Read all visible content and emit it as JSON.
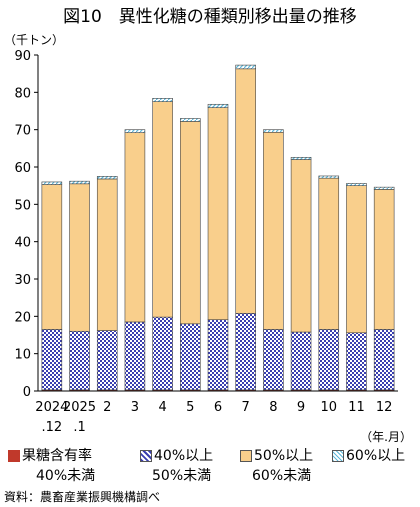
{
  "chart_data": {
    "type": "bar",
    "stacked": true,
    "title": "図10　異性化糖の種類別移出量の推移",
    "ylabel": "（千トン）",
    "xlabel": "（年.月）",
    "ylim": [
      0,
      90
    ],
    "yticks": [
      0,
      10,
      20,
      30,
      40,
      50,
      60,
      70,
      80,
      90
    ],
    "grid": false,
    "categories": [
      "2024\n.12",
      "2025\n.1",
      "2",
      "3",
      "4",
      "5",
      "6",
      "7",
      "8",
      "9",
      "10",
      "11",
      "12"
    ],
    "category_lines": [
      [
        "2024",
        ".12"
      ],
      [
        "2025",
        ".1"
      ],
      [
        "2"
      ],
      [
        "3"
      ],
      [
        "4"
      ],
      [
        "5"
      ],
      [
        "6"
      ],
      [
        "7"
      ],
      [
        "8"
      ],
      [
        "9"
      ],
      [
        "10"
      ],
      [
        "11"
      ],
      [
        "12"
      ]
    ],
    "series": [
      {
        "name": "果糖含有率40%未満",
        "color": "#c0392b",
        "values": [
          0.3,
          0.3,
          0.3,
          0.3,
          0.3,
          0.3,
          0.3,
          0.3,
          0.3,
          0.3,
          0.3,
          0.3,
          0.3
        ]
      },
      {
        "name": "40%以上50%未満",
        "color": "#3a3fb0",
        "values": [
          16.2,
          15.7,
          15.9,
          18.2,
          19.5,
          17.7,
          18.8,
          20.5,
          16.2,
          15.5,
          16.2,
          15.3,
          16.2
        ]
      },
      {
        "name": "50%以上60%未満",
        "color": "#f9cf8c",
        "values": [
          38.8,
          39.5,
          40.6,
          50.7,
          57.7,
          54.2,
          56.8,
          65.5,
          52.8,
          46.2,
          40.5,
          39.4,
          37.5
        ]
      },
      {
        "name": "60%以上",
        "color": "#9fd9ee",
        "values": [
          0.7,
          0.7,
          0.7,
          0.8,
          0.9,
          0.8,
          0.9,
          1.0,
          0.7,
          0.6,
          0.6,
          0.6,
          0.6
        ]
      }
    ]
  },
  "legend": {
    "items": [
      {
        "line1": "果糖含有率",
        "line2": "40%未満",
        "color": "#c0392b"
      },
      {
        "line1": "40%以上",
        "line2": "50%未満",
        "color": "#3a3fb0"
      },
      {
        "line1": "50%以上",
        "line2": "60%未満",
        "color": "#f9cf8c"
      },
      {
        "line1": "60%以上",
        "line2": "",
        "color": "#9fd9ee"
      }
    ]
  },
  "source": "資料：農畜産業振興機構調べ"
}
